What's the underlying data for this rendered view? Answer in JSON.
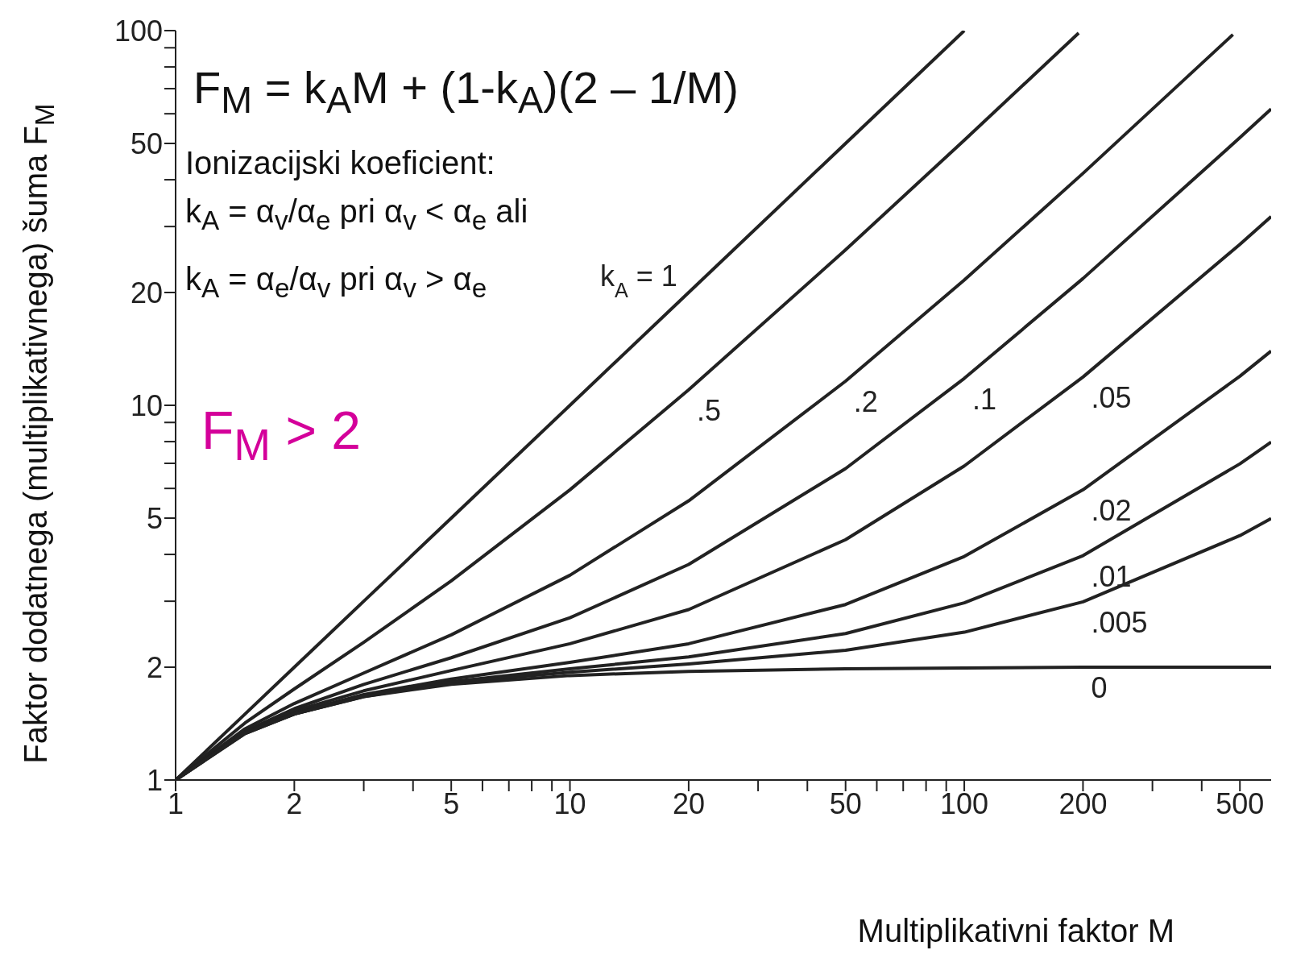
{
  "chart_data": {
    "type": "line",
    "xlabel": "Multiplikativni faktor M",
    "ylabel": "Faktor dodatnega (multiplikativnega) šuma F$_{M}$",
    "annotations": [
      "F$_{M}$ = k$_{A}$M + (1-k$_{A}$)(2 – 1/M)",
      "Ionizacijski koeficient:",
      "k$_{A}$ = α$_{v}$/α$_{e}$ pri α$_{v}$ < α$_{e}$ ali",
      "k$_{A}$ = α$_{e}$/α$_{v}$ pri α$_{v}$ > α$_{e}$",
      "F$_{M}$ > 2"
    ],
    "log": "xy",
    "grid": false,
    "marker": "none",
    "line_style": "solid",
    "xlim": [
      1,
      600
    ],
    "ylim": [
      1,
      100
    ],
    "xticks": [
      1,
      2,
      {
        "value": 3,
        "label": null
      },
      {
        "value": 4,
        "label": null
      },
      5,
      {
        "value": 6,
        "label": null
      },
      {
        "value": 7,
        "label": null
      },
      {
        "value": 8,
        "label": null
      },
      {
        "value": 9,
        "label": null
      },
      10,
      20,
      {
        "value": 30,
        "label": null
      },
      {
        "value": 40,
        "label": null
      },
      50,
      {
        "value": 60,
        "label": null
      },
      {
        "value": 70,
        "label": null
      },
      {
        "value": 80,
        "label": null
      },
      {
        "value": 90,
        "label": null
      },
      100,
      200,
      {
        "value": 300,
        "label": null
      },
      {
        "value": 400,
        "label": null
      },
      500
    ],
    "yticks": [
      1,
      2,
      {
        "value": 3,
        "label": null
      },
      {
        "value": 4,
        "label": null
      },
      5,
      {
        "value": 6,
        "label": null
      },
      {
        "value": 7,
        "label": null
      },
      {
        "value": 8,
        "label": null
      },
      {
        "value": 9,
        "label": null
      },
      10,
      20,
      {
        "value": 30,
        "label": null
      },
      {
        "value": 40,
        "label": null
      },
      50,
      {
        "value": 60,
        "label": null
      },
      {
        "value": 70,
        "label": null
      },
      {
        "value": 80,
        "label": null
      },
      {
        "value": 90,
        "label": null
      },
      100
    ],
    "series": [
      {
        "name": "k$_{A}$ = 1",
        "color": "#222222",
        "x": [
          1,
          1.5,
          2,
          3,
          5,
          10,
          20,
          50,
          100
        ],
        "values": [
          1,
          1.5,
          2,
          3,
          5,
          10,
          20,
          50,
          100
        ]
      },
      {
        "name": ".5",
        "color": "#222222",
        "x": [
          1,
          1.5,
          2,
          3,
          5,
          10,
          20,
          50,
          100,
          195
        ],
        "values": [
          1,
          1.42,
          1.75,
          2.33,
          3.4,
          5.95,
          11,
          26,
          51,
          98.5
        ]
      },
      {
        "name": ".2",
        "color": "#222222",
        "x": [
          1,
          1.5,
          2,
          3,
          5,
          10,
          20,
          50,
          100,
          200,
          480
        ],
        "values": [
          1,
          1.37,
          1.6,
          1.93,
          2.44,
          3.52,
          5.56,
          11.6,
          21.6,
          41.6,
          97.6
        ]
      },
      {
        "name": ".1",
        "color": "#222222",
        "x": [
          1,
          1.5,
          2,
          3,
          5,
          10,
          20,
          50,
          100,
          200,
          500,
          600
        ],
        "values": [
          1,
          1.35,
          1.55,
          1.8,
          2.12,
          2.71,
          3.76,
          6.78,
          11.8,
          21.8,
          51.8,
          61.8
        ]
      },
      {
        "name": ".05",
        "color": "#222222",
        "x": [
          1,
          1.5,
          2,
          3,
          5,
          10,
          20,
          50,
          100,
          200,
          500,
          600
        ],
        "values": [
          1,
          1.34,
          1.53,
          1.73,
          1.96,
          2.31,
          2.85,
          4.38,
          6.89,
          11.9,
          26.9,
          31.9
        ]
      },
      {
        "name": ".02",
        "color": "#222222",
        "x": [
          1,
          1.5,
          2,
          3,
          5,
          10,
          20,
          50,
          100,
          200,
          500,
          600
        ],
        "values": [
          1,
          1.34,
          1.51,
          1.69,
          1.86,
          2.06,
          2.31,
          2.94,
          3.95,
          5.95,
          11.96,
          13.96
        ]
      },
      {
        "name": ".01",
        "color": "#222222",
        "x": [
          1,
          1.5,
          2,
          3,
          5,
          10,
          20,
          50,
          100,
          200,
          500,
          600
        ],
        "values": [
          1,
          1.34,
          1.5,
          1.68,
          1.83,
          1.98,
          2.13,
          2.46,
          2.97,
          3.97,
          6.98,
          7.98
        ]
      },
      {
        "name": ".005",
        "color": "#222222",
        "x": [
          1,
          1.5,
          2,
          3,
          5,
          10,
          20,
          50,
          100,
          200,
          500,
          600
        ],
        "values": [
          1,
          1.33,
          1.5,
          1.67,
          1.82,
          1.94,
          2.04,
          2.22,
          2.48,
          2.99,
          4.49,
          4.99
        ]
      },
      {
        "name": "0",
        "color": "#222222",
        "x": [
          1,
          1.5,
          2,
          3,
          5,
          10,
          20,
          50,
          100,
          200,
          500,
          600
        ],
        "values": [
          1,
          1.33,
          1.5,
          1.67,
          1.8,
          1.9,
          1.95,
          1.98,
          1.99,
          2,
          2,
          2
        ]
      }
    ]
  }
}
